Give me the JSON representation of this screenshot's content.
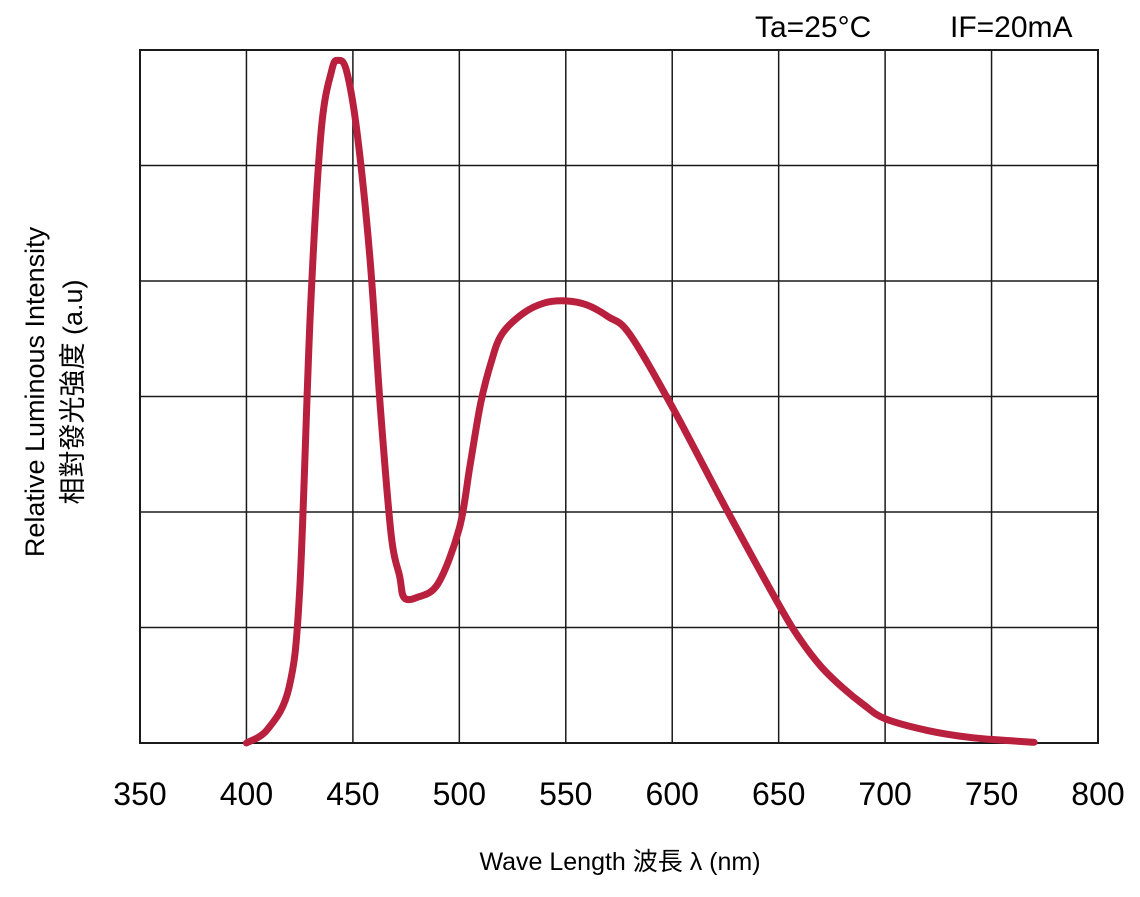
{
  "chart_data": {
    "type": "line",
    "title": "",
    "conditions": {
      "temperature": "Ta=25°C",
      "current": "IF=20mA"
    },
    "xlabel": "Wave Length 波長 λ (nm)",
    "ylabel_en": "Relative Luminous Intensity",
    "ylabel_zh": "相對發光強度 (a.u)",
    "xlim": [
      350,
      800
    ],
    "ylim": [
      0,
      1.0
    ],
    "x_ticks": [
      350,
      400,
      450,
      500,
      550,
      600,
      650,
      700,
      750,
      800
    ],
    "y_divisions": 6,
    "grid": true,
    "line_color": "#b8203e",
    "series": [
      {
        "x": [
          400,
          410,
          420,
          425,
          430,
          435,
          440,
          443,
          447,
          452,
          458,
          463,
          468,
          472,
          474,
          480,
          490,
          500,
          505,
          510,
          515,
          520,
          530,
          540,
          550,
          560,
          570,
          580,
          600,
          625,
          650,
          660,
          670,
          680,
          690,
          700,
          720,
          740,
          760,
          770
        ],
        "y": [
          0.0,
          0.02,
          0.08,
          0.22,
          0.62,
          0.88,
          0.97,
          0.985,
          0.97,
          0.88,
          0.7,
          0.48,
          0.3,
          0.24,
          0.21,
          0.21,
          0.23,
          0.31,
          0.4,
          0.49,
          0.55,
          0.59,
          0.62,
          0.635,
          0.638,
          0.632,
          0.615,
          0.59,
          0.485,
          0.34,
          0.2,
          0.15,
          0.11,
          0.08,
          0.055,
          0.035,
          0.018,
          0.008,
          0.003,
          0.001
        ]
      }
    ]
  }
}
